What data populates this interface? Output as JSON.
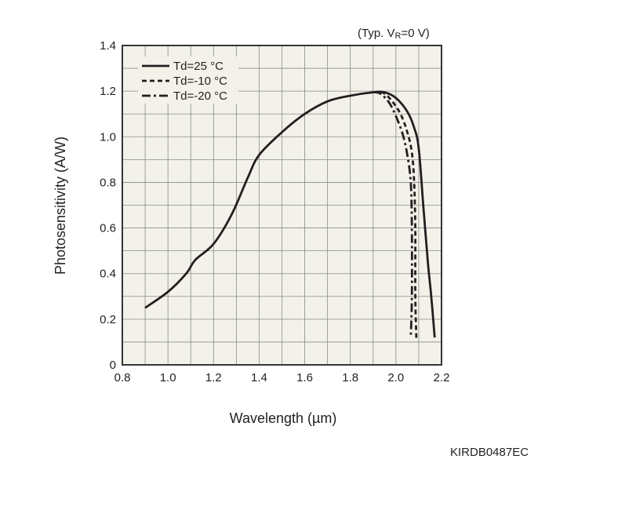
{
  "chart_data": {
    "type": "line",
    "annotation": "(Typ. V",
    "annotation_sub": "R",
    "annotation_tail": "=0 V)",
    "xlabel": "Wavelength (µm)",
    "ylabel": "Photosensitivity (A/W)",
    "xlim": [
      0.8,
      2.2
    ],
    "ylim": [
      0,
      1.4
    ],
    "xticks": [
      "0.8",
      "1.0",
      "1.2",
      "1.4",
      "1.6",
      "1.8",
      "2.0",
      "2.2"
    ],
    "yticks": [
      "0",
      "0.2",
      "0.4",
      "0.6",
      "0.8",
      "1.0",
      "1.2",
      "1.4"
    ],
    "grid": true,
    "legend_position": "top-left",
    "background_color": "#f3f2ea",
    "line_color": "#231f20",
    "series": [
      {
        "name": "Td=25 °C",
        "dash": "solid",
        "x": [
          0.9,
          1.0,
          1.08,
          1.12,
          1.2,
          1.28,
          1.35,
          1.4,
          1.5,
          1.6,
          1.7,
          1.8,
          1.9,
          1.95,
          2.0,
          2.05,
          2.08,
          2.1,
          2.12,
          2.14,
          2.155,
          2.17
        ],
        "y": [
          0.25,
          0.32,
          0.4,
          0.46,
          0.53,
          0.66,
          0.82,
          0.92,
          1.02,
          1.1,
          1.155,
          1.18,
          1.195,
          1.195,
          1.17,
          1.11,
          1.04,
          0.95,
          0.7,
          0.45,
          0.3,
          0.12
        ]
      },
      {
        "name": "Td=-10 °C",
        "dash": "dashed",
        "x": [
          1.9,
          1.94,
          1.98,
          2.02,
          2.05,
          2.07,
          2.08,
          2.085,
          2.085,
          2.09
        ],
        "y": [
          1.195,
          1.195,
          1.16,
          1.1,
          1.02,
          0.93,
          0.8,
          0.6,
          0.3,
          0.11
        ]
      },
      {
        "name": "Td=-20 °C",
        "dash": "dashdot",
        "x": [
          1.9,
          1.93,
          1.97,
          2.0,
          2.03,
          2.05,
          2.065,
          2.07,
          2.07,
          2.065
        ],
        "y": [
          1.195,
          1.19,
          1.15,
          1.09,
          1.01,
          0.92,
          0.8,
          0.6,
          0.3,
          0.12
        ]
      }
    ]
  },
  "footer": {
    "doc_code": "KIRDB0487EC"
  }
}
